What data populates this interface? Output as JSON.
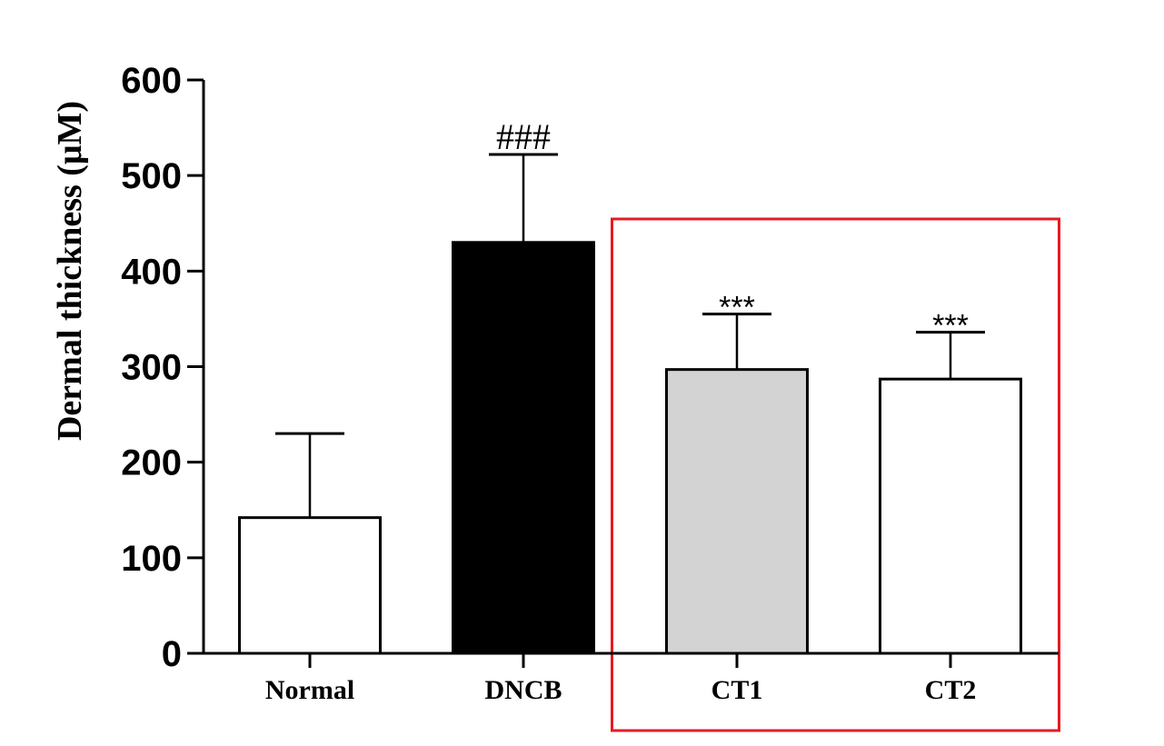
{
  "chart_data": {
    "type": "bar",
    "title": "",
    "xlabel": "",
    "ylabel": "Dermal thickness (μM)",
    "ylim": [
      0,
      600
    ],
    "yticks": [
      0,
      100,
      200,
      300,
      400,
      500,
      600
    ],
    "ytick_labels": [
      "0",
      "100",
      "200",
      "300",
      "400",
      "500",
      "600"
    ],
    "categories": [
      "Normal",
      "DNCB",
      "CT1",
      "CT2"
    ],
    "values": [
      142,
      430,
      297,
      287
    ],
    "errors": [
      88,
      92,
      58,
      49
    ],
    "bar_colors": [
      "#ffffff",
      "#000000",
      "#d3d3d3",
      "#ffffff"
    ],
    "annotations": [
      "",
      "###",
      "***",
      "***"
    ],
    "highlight_box": {
      "categories": [
        "CT1",
        "CT2"
      ],
      "color": "#e31b23"
    },
    "grid": false
  }
}
